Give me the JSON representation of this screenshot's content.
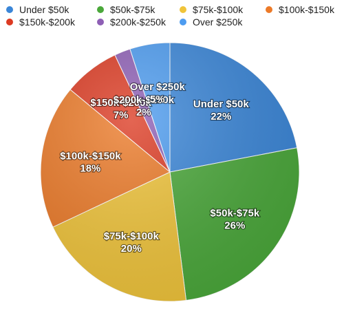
{
  "chart_data": {
    "type": "pie",
    "categories": [
      "Under $50k",
      "$50k-$75k",
      "$75k-$100k",
      "$100k-$150k",
      "$150k-$200k",
      "$200k-$250k",
      "Over $250k"
    ],
    "values": [
      22,
      26,
      20,
      18,
      7,
      2,
      5
    ],
    "data_labels": [
      "22%",
      "26%",
      "20%",
      "18%",
      "7%",
      "2%",
      "5%"
    ],
    "colors": [
      "#3a86d8",
      "#4aa83a",
      "#f0c43a",
      "#ec7a28",
      "#dc3a22",
      "#8e5fb5",
      "#4d9cf0"
    ],
    "legend": {
      "position": "top",
      "entries": [
        "Under $50k",
        "$50k-$75k",
        "$75k-$100k",
        "$100k-$150k",
        "$150k-$200k",
        "$200k-$250k",
        "Over $250k"
      ]
    },
    "start_angle_deg": 0,
    "direction": "clockwise"
  }
}
